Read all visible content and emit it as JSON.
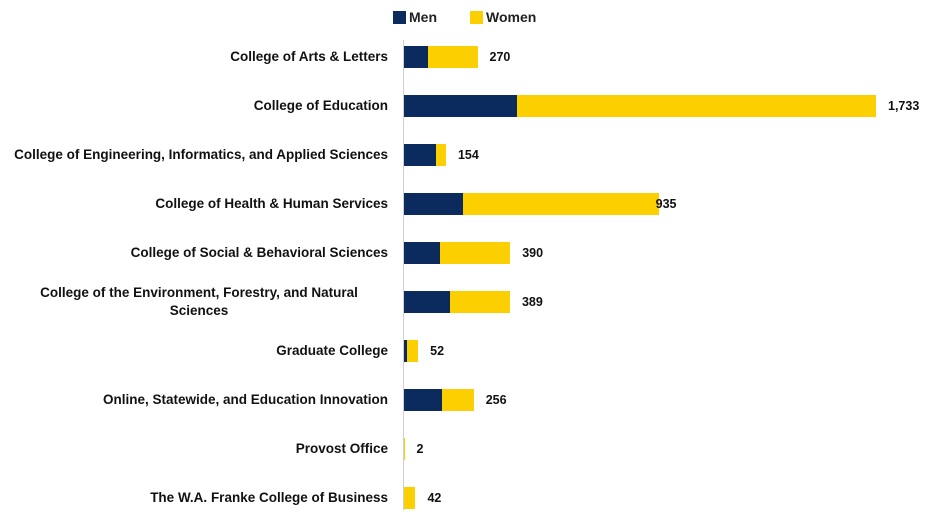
{
  "chart_data": {
    "type": "bar",
    "orientation": "horizontal",
    "stacked": true,
    "categories": [
      "College of Arts & Letters",
      "College of Education",
      "College of Engineering, Informatics, and Applied Sciences",
      "College of Health & Human Services",
      "College of Social & Behavioral Sciences",
      "College of the Environment, Forestry, and Natural Sciences",
      "Graduate College",
      "Online, Statewide, and Education Innovation",
      "Provost Office",
      "The W.A. Franke College of Business"
    ],
    "series": [
      {
        "name": "Men",
        "color": "#0b2a5e",
        "values": [
          88,
          415,
          117,
          217,
          132,
          169,
          11,
          140,
          0,
          0
        ]
      },
      {
        "name": "Women",
        "color": "#fcd000",
        "values": [
          182,
          1318,
          37,
          718,
          258,
          220,
          41,
          116,
          2,
          42
        ]
      }
    ],
    "totals": [
      270,
      1733,
      154,
      935,
      390,
      389,
      52,
      256,
      2,
      42
    ],
    "total_labels": [
      "270",
      "1,733",
      "154",
      "935",
      "390",
      "389",
      "52",
      "256",
      "2",
      "42"
    ]
  }
}
